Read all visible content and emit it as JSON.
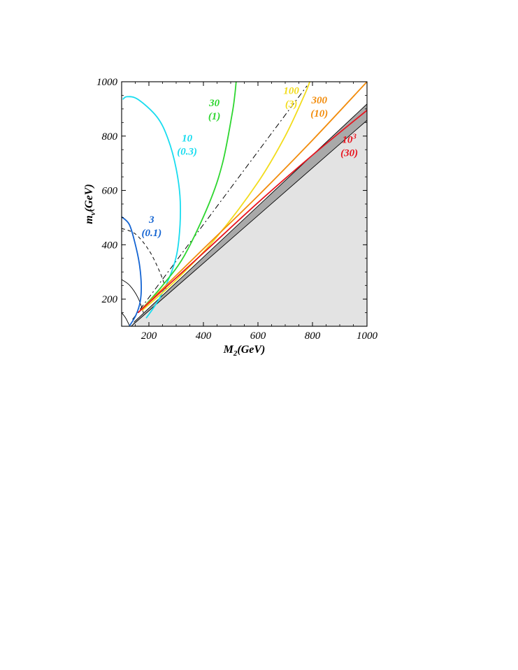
{
  "chart_data": {
    "type": "line",
    "title": "",
    "xlabel": "M",
    "xlabel_sub": "2",
    "xlabel_unit": "(GeV)",
    "ylabel": "m",
    "ylabel_sub": "ν̃",
    "ylabel_unit": "(GeV)",
    "xlim": [
      100,
      1000
    ],
    "ylim": [
      100,
      1000
    ],
    "xticks": [
      200,
      400,
      600,
      800,
      1000
    ],
    "yticks": [
      200,
      400,
      600,
      800,
      1000
    ],
    "grid": false,
    "excluded_region_color": "#e3e3e3",
    "band_color": "#a9a9a9",
    "series": [
      {
        "label": "3",
        "sublabel": "(0.1)",
        "color": "#1464d2",
        "x": [
          100,
          128,
          148,
          165,
          172,
          168,
          152,
          128
        ],
        "y": [
          503,
          475,
          410,
          330,
          250,
          190,
          140,
          100
        ]
      },
      {
        "label": "10",
        "sublabel": "(0.3)",
        "color": "#19dcef",
        "x": [
          190,
          240,
          290,
          310,
          315,
          300,
          270,
          230,
          160,
          120,
          104
        ],
        "y": [
          130,
          205,
          320,
          420,
          560,
          680,
          790,
          870,
          935,
          945,
          935
        ]
      },
      {
        "label": "30",
        "sublabel": "(1)",
        "color": "#2ed630",
        "x": [
          180,
          250,
          330,
          420,
          470,
          505,
          515,
          520
        ],
        "y": [
          170,
          250,
          360,
          550,
          700,
          880,
          950,
          1000
        ]
      },
      {
        "label": "100",
        "sublabel": "(3)",
        "color": "#f2dc1c",
        "x": [
          175,
          300,
          450,
          600,
          700,
          770,
          790
        ],
        "y": [
          158,
          270,
          430,
          630,
          800,
          950,
          1000
        ]
      },
      {
        "label": "300",
        "sublabel": "(10)",
        "color": "#f28c0c",
        "x": [
          165,
          400,
          600,
          800,
          1000
        ],
        "y": [
          155,
          385,
          580,
          785,
          1000
        ]
      },
      {
        "label": "10^3",
        "sublabel": "(30)",
        "color": "#e8141e",
        "x": [
          160,
          400,
          600,
          800,
          1000
        ],
        "y": [
          150,
          370,
          555,
          730,
          895
        ]
      }
    ],
    "black_lines": {
      "band_upper": {
        "x": [
          145,
          1000
        ],
        "y": [
          115,
          918
        ]
      },
      "band_lower": {
        "x": [
          135,
          1000
        ],
        "y": [
          100,
          858
        ]
      },
      "dash_dot": {
        "x": [
          140,
          780
        ],
        "y": [
          125,
          985
        ]
      },
      "dashed": {
        "x": [
          100,
          150,
          200,
          240,
          265
        ],
        "y": [
          460,
          440,
          380,
          300,
          230
        ]
      },
      "solid_arc_1": {
        "x": [
          100,
          130,
          160,
          180
        ],
        "y": [
          272,
          250,
          205,
          150
        ]
      },
      "solid_arc_2": {
        "x": [
          100,
          115,
          130
        ],
        "y": [
          150,
          130,
          100
        ]
      }
    },
    "annotations": [
      {
        "text": "3",
        "sub": "(0.1)",
        "color": "#1464d2",
        "x": 210,
        "y": 480
      },
      {
        "text": "10",
        "sub": "(0.3)",
        "color": "#19dcef",
        "x": 340,
        "y": 780
      },
      {
        "text": "30",
        "sub": "(1)",
        "color": "#2ed630",
        "x": 440,
        "y": 910
      },
      {
        "text": "100",
        "sub": "(3)",
        "color": "#f2dc1c",
        "x": 722,
        "y": 955
      },
      {
        "text": "300",
        "sub": "(10)",
        "color": "#f28c0c",
        "x": 825,
        "y": 920
      },
      {
        "text": "10",
        "sup": "3",
        "sub": "(30)",
        "color": "#e8141e",
        "x": 935,
        "y": 775
      }
    ]
  }
}
